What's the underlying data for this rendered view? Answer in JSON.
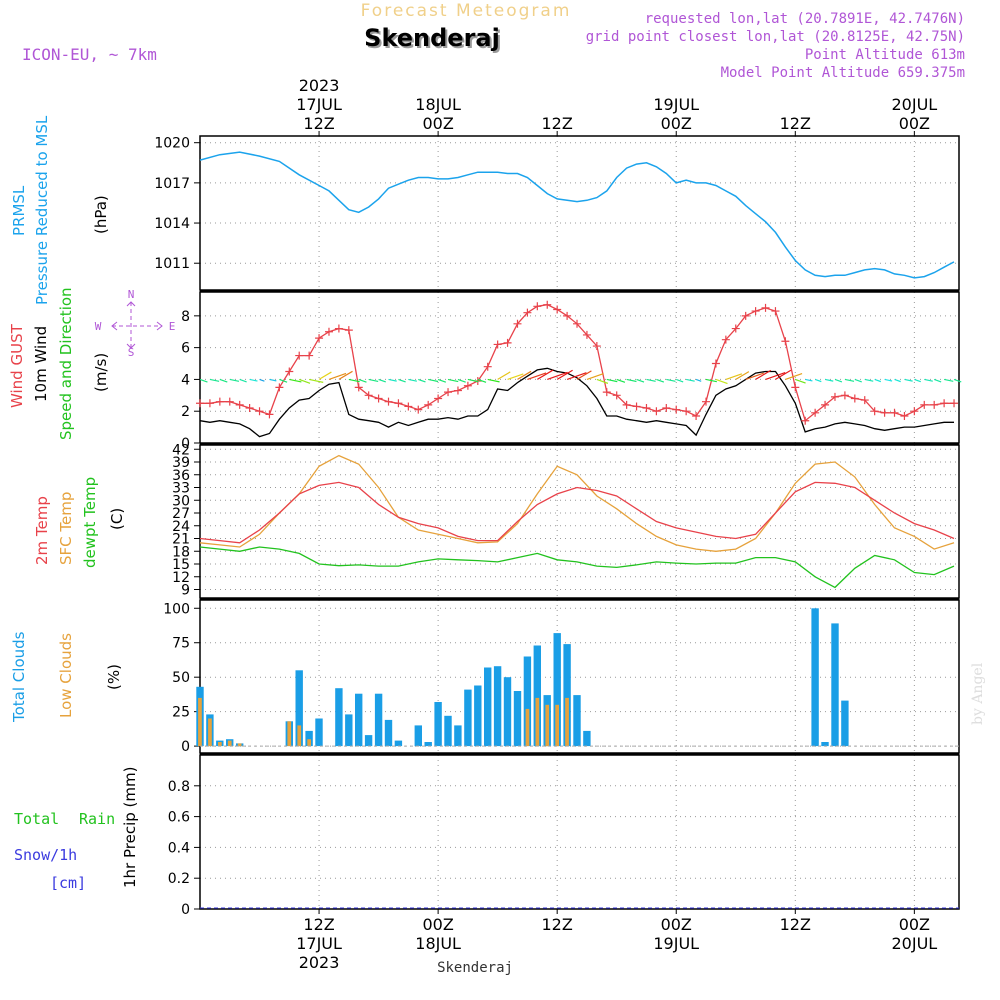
{
  "header": {
    "title": "Forecast Meteogram",
    "location": "Skenderaj",
    "model": "ICON-EU, ~ 7km",
    "requested": "requested lon,lat (20.7891E, 42.7476N)",
    "gridpoint": "grid point closest lon,lat (20.8125E, 42.75N)",
    "altitude": "Point Altitude 613m",
    "model_altitude": "Model Point Altitude 659.375m",
    "footer_location": "Skenderaj",
    "watermark": "by Angel"
  },
  "colors": {
    "pressure": "#1ba3ec",
    "gust": "#e8424a",
    "wind": "#000000",
    "t2m": "#e8424a",
    "sfc": "#e6a23c",
    "dewpt": "#22c21e",
    "total_clouds": "#1a9ee6",
    "low_clouds": "#e6a23c",
    "rain": "#22c21e",
    "snow": "#3a3adf",
    "header_title": "#f0d08a",
    "info": "#b056d6"
  },
  "time_axis": {
    "top": [
      {
        "line1": "2023",
        "line2": "17JUL",
        "line3": "12Z",
        "hour": 12
      },
      {
        "line1": "",
        "line2": "18JUL",
        "line3": "00Z",
        "hour": 24
      },
      {
        "line1": "",
        "line2": "",
        "line3": "12Z",
        "hour": 36
      },
      {
        "line1": "",
        "line2": "19JUL",
        "line3": "00Z",
        "hour": 48
      },
      {
        "line1": "",
        "line2": "",
        "line3": "12Z",
        "hour": 60
      },
      {
        "line1": "",
        "line2": "20JUL",
        "line3": "00Z",
        "hour": 72
      }
    ],
    "bottom": [
      {
        "line1": "12Z",
        "line2": "17JUL",
        "line3": "2023",
        "hour": 12
      },
      {
        "line1": "00Z",
        "line2": "18JUL",
        "line3": "",
        "hour": 24
      },
      {
        "line1": "12Z",
        "line2": "",
        "line3": "",
        "hour": 36
      },
      {
        "line1": "00Z",
        "line2": "19JUL",
        "line3": "",
        "hour": 48
      },
      {
        "line1": "12Z",
        "line2": "",
        "line3": "",
        "hour": 60
      },
      {
        "line1": "00Z",
        "line2": "20JUL",
        "line3": "",
        "hour": 72
      }
    ]
  },
  "panels": {
    "pressure": {
      "label1": "PRMSL",
      "label2": "Pressure Reduced to MSL",
      "unit": "(hPa)"
    },
    "wind": {
      "label_gust": "Wind GUST",
      "label_wind": "10m Wind",
      "label_dir": "Speed and Direction",
      "unit": "(m/s)",
      "compass_n": "N",
      "compass_s": "S",
      "compass_w": "W",
      "compass_e": "E"
    },
    "temp": {
      "label_t2m": "2m Temp",
      "label_sfc": "SFC Temp",
      "label_dew": "dewpt Temp",
      "unit": "(C)"
    },
    "clouds": {
      "label_total": "Total Clouds",
      "label_low": "Low Clouds",
      "unit": "(%)"
    },
    "precip": {
      "label_rain_total": "Total",
      "label_rain": "Rain",
      "label_snow": "Snow/1h",
      "label_snow_unit": "[cm]",
      "unit": "1hr Precip (mm)"
    }
  },
  "chart_data": [
    {
      "type": "line",
      "name": "pressure",
      "ylabel": "(hPa)",
      "ylim": [
        1009,
        1020.5
      ],
      "yticks": [
        1011,
        1014,
        1017,
        1020
      ],
      "xlim": [
        0,
        76.5
      ],
      "x": [
        0,
        2,
        4,
        6,
        8,
        10,
        12,
        13,
        14,
        15,
        16,
        17,
        18,
        19,
        20,
        21,
        22,
        23,
        24,
        25,
        26,
        27,
        28,
        29,
        30,
        31,
        32,
        33,
        34,
        35,
        36,
        37,
        38,
        39,
        40,
        41,
        42,
        43,
        44,
        45,
        46,
        47,
        48,
        49,
        50,
        51,
        52,
        53,
        54,
        55,
        56,
        57,
        58,
        59,
        60,
        61,
        62,
        63,
        64,
        65,
        66,
        67,
        68,
        69,
        70,
        71,
        72,
        73,
        74,
        75,
        76
      ],
      "series": [
        {
          "values": [
            1018.7,
            1019.1,
            1019.3,
            1019.0,
            1018.6,
            1017.6,
            1016.8,
            1016.4,
            1015.7,
            1015.0,
            1014.8,
            1015.2,
            1015.8,
            1016.6,
            1016.9,
            1017.2,
            1017.4,
            1017.4,
            1017.3,
            1017.3,
            1017.4,
            1017.6,
            1017.8,
            1017.8,
            1017.8,
            1017.7,
            1017.7,
            1017.4,
            1016.8,
            1016.2,
            1015.8,
            1015.7,
            1015.6,
            1015.7,
            1015.9,
            1016.4,
            1017.4,
            1018.1,
            1018.4,
            1018.5,
            1018.2,
            1017.7,
            1017.0,
            1017.2,
            1017.0,
            1017.0,
            1016.8,
            1016.4,
            1016.0,
            1015.3,
            1014.7,
            1014.1,
            1013.3,
            1012.2,
            1011.2,
            1010.5,
            1010.1,
            1010.0,
            1010.1,
            1010.1,
            1010.3,
            1010.5,
            1010.6,
            1010.5,
            1010.2,
            1010.1,
            1009.9,
            1010.0,
            1010.3,
            1010.7,
            1011.1
          ]
        }
      ]
    },
    {
      "type": "line",
      "name": "wind",
      "ylabel": "(m/s)",
      "ylim": [
        0,
        9.5
      ],
      "yticks": [
        0,
        2,
        4,
        6,
        8
      ],
      "xlim": [
        0,
        76.5
      ],
      "x": [
        0,
        1,
        2,
        3,
        4,
        5,
        6,
        7,
        8,
        9,
        10,
        11,
        12,
        13,
        14,
        15,
        16,
        17,
        18,
        19,
        20,
        21,
        22,
        23,
        24,
        25,
        26,
        27,
        28,
        29,
        30,
        31,
        32,
        33,
        34,
        35,
        36,
        37,
        38,
        39,
        40,
        41,
        42,
        43,
        44,
        45,
        46,
        47,
        48,
        49,
        50,
        51,
        52,
        53,
        54,
        55,
        56,
        57,
        58,
        59,
        60,
        61,
        62,
        63,
        64,
        65,
        66,
        67,
        68,
        69,
        70,
        71,
        72,
        73,
        74,
        75,
        76
      ],
      "series": [
        {
          "name": "Wind GUST",
          "values": [
            2.5,
            2.5,
            2.6,
            2.6,
            2.4,
            2.2,
            2.0,
            1.8,
            3.5,
            4.5,
            5.5,
            5.5,
            6.6,
            7.0,
            7.2,
            7.1,
            3.5,
            3.0,
            2.8,
            2.6,
            2.5,
            2.3,
            2.1,
            2.4,
            2.8,
            3.2,
            3.3,
            3.6,
            3.9,
            4.8,
            6.2,
            6.3,
            7.5,
            8.2,
            8.6,
            8.7,
            8.4,
            8.0,
            7.5,
            6.8,
            6.1,
            3.2,
            3.0,
            2.4,
            2.3,
            2.2,
            2.0,
            2.2,
            2.1,
            2.0,
            1.7,
            2.6,
            5.0,
            6.5,
            7.2,
            8.0,
            8.3,
            8.5,
            8.3,
            6.4,
            3.5,
            1.4,
            1.9,
            2.4,
            2.9,
            3.0,
            2.8,
            2.7,
            2.0,
            1.9,
            1.9,
            1.7,
            2.0,
            2.4,
            2.4,
            2.5,
            2.5
          ]
        },
        {
          "name": "10m Wind",
          "values": [
            1.4,
            1.3,
            1.4,
            1.3,
            1.2,
            0.9,
            0.4,
            0.6,
            1.5,
            2.2,
            2.7,
            2.8,
            3.3,
            3.7,
            3.8,
            1.8,
            1.5,
            1.4,
            1.3,
            1.0,
            1.3,
            1.1,
            1.3,
            1.5,
            1.5,
            1.6,
            1.5,
            1.7,
            1.7,
            2.1,
            3.4,
            3.3,
            3.8,
            4.2,
            4.6,
            4.7,
            4.5,
            4.4,
            4.1,
            3.6,
            2.8,
            1.7,
            1.7,
            1.5,
            1.4,
            1.3,
            1.4,
            1.3,
            1.2,
            1.1,
            0.5,
            1.8,
            3.0,
            3.4,
            3.6,
            4.0,
            4.4,
            4.5,
            4.5,
            3.6,
            2.5,
            0.7,
            0.9,
            1.0,
            1.2,
            1.3,
            1.2,
            1.1,
            0.9,
            0.8,
            0.9,
            1.0,
            1.0,
            1.1,
            1.2,
            1.3,
            1.3
          ]
        }
      ]
    },
    {
      "type": "line",
      "name": "temperature",
      "ylabel": "(C)",
      "ylim": [
        7,
        43
      ],
      "yticks": [
        9,
        12,
        15,
        18,
        21,
        24,
        27,
        30,
        33,
        36,
        39,
        42
      ],
      "xlim": [
        0,
        76.5
      ],
      "x": [
        0,
        2,
        4,
        6,
        8,
        10,
        12,
        14,
        16,
        18,
        20,
        22,
        24,
        26,
        28,
        30,
        32,
        34,
        36,
        38,
        40,
        42,
        44,
        46,
        48,
        50,
        52,
        54,
        56,
        58,
        60,
        62,
        64,
        66,
        68,
        70,
        72,
        74,
        76
      ],
      "series": [
        {
          "name": "2m Temp",
          "values": [
            21,
            20.5,
            20,
            23,
            27,
            31.5,
            33.5,
            34.2,
            33,
            29,
            26,
            24.5,
            23.5,
            21.5,
            20.5,
            20.5,
            25,
            29,
            31.5,
            33,
            32.3,
            31,
            28,
            25,
            23.5,
            22.5,
            21.5,
            21,
            22,
            27,
            32,
            34.2,
            34,
            33,
            30,
            27,
            24.5,
            23,
            21
          ]
        },
        {
          "name": "SFC Temp",
          "values": [
            20,
            19.5,
            19,
            22,
            27,
            31.5,
            38,
            40.5,
            38.5,
            33,
            26,
            23,
            22,
            21,
            20,
            20.2,
            24.5,
            31.5,
            38,
            36,
            31,
            28,
            24.5,
            21.5,
            19.5,
            18.5,
            18,
            18.5,
            21,
            27,
            34,
            38.5,
            39,
            35.5,
            29,
            23.5,
            21.5,
            18.5,
            20
          ]
        },
        {
          "name": "dewpt Temp",
          "values": [
            19,
            18.5,
            18,
            19,
            18.5,
            17.5,
            15,
            14.6,
            14.8,
            14.5,
            14.5,
            15.5,
            16.2,
            16,
            15.8,
            15.5,
            16.5,
            17.5,
            16,
            15.5,
            14.5,
            14.2,
            14.8,
            15.5,
            15.2,
            15,
            15.2,
            15.2,
            16.5,
            16.5,
            15.5,
            12,
            9.5,
            14,
            17,
            16,
            13,
            12.5,
            14.5
          ]
        }
      ]
    },
    {
      "type": "bar",
      "name": "clouds",
      "ylabel": "(%)",
      "ylim": [
        -5,
        106
      ],
      "yticks": [
        0,
        25,
        50,
        75,
        100
      ],
      "xlim": [
        0,
        76.5
      ],
      "x": [
        0,
        1,
        2,
        3,
        4,
        5,
        6,
        7,
        8,
        9,
        10,
        11,
        12,
        13,
        14,
        15,
        16,
        17,
        18,
        19,
        20,
        21,
        22,
        23,
        24,
        25,
        26,
        27,
        28,
        29,
        30,
        31,
        32,
        33,
        34,
        35,
        36,
        37,
        38,
        39,
        40,
        41,
        42,
        43,
        44,
        45,
        46,
        47,
        48,
        49,
        50,
        51,
        52,
        53,
        54,
        55,
        56,
        57,
        58,
        59,
        60,
        61,
        62,
        63,
        64,
        65,
        66,
        67,
        68,
        69,
        70,
        71,
        72,
        73,
        74,
        75,
        76
      ],
      "series": [
        {
          "name": "Total Clouds",
          "values": [
            43,
            23,
            4,
            5,
            2,
            0,
            0,
            0,
            0,
            18,
            55,
            11,
            20,
            0,
            42,
            23,
            38,
            8,
            38,
            19,
            4,
            0,
            15,
            3,
            32,
            22,
            15,
            41,
            44,
            57,
            58,
            50,
            40,
            65,
            73,
            37,
            82,
            74,
            37,
            11,
            0,
            0,
            0,
            0,
            0,
            0,
            0,
            0,
            0,
            0,
            0,
            0,
            0,
            0,
            0,
            0,
            0,
            0,
            0,
            0,
            0,
            0,
            100,
            3,
            89,
            33,
            0,
            0,
            0,
            0,
            0,
            0,
            0,
            0,
            0,
            0,
            0
          ]
        },
        {
          "name": "Low Clouds",
          "values": [
            35,
            20,
            3,
            4,
            2,
            0,
            0,
            0,
            0,
            18,
            15,
            5,
            0,
            0,
            0,
            0,
            0,
            0,
            0,
            0,
            0,
            0,
            0,
            0,
            0,
            0,
            0,
            0,
            0,
            0,
            0,
            0,
            0,
            27,
            35,
            30,
            30,
            35,
            0,
            0,
            0,
            0,
            0,
            0,
            0,
            0,
            0,
            0,
            0,
            0,
            0,
            0,
            0,
            0,
            0,
            0,
            0,
            0,
            0,
            0,
            0,
            0,
            0,
            0,
            0,
            0,
            0,
            0,
            0,
            0,
            0,
            0,
            0,
            0,
            0,
            0,
            0
          ]
        }
      ]
    },
    {
      "type": "bar",
      "name": "precip",
      "ylabel": "1hr Precip (mm)",
      "ylim": [
        0,
        1.0
      ],
      "yticks": [
        0,
        0.2,
        0.4,
        0.6,
        0.8
      ],
      "xlim": [
        0,
        76.5
      ],
      "series": [
        {
          "name": "Rain",
          "values": []
        }
      ]
    }
  ]
}
